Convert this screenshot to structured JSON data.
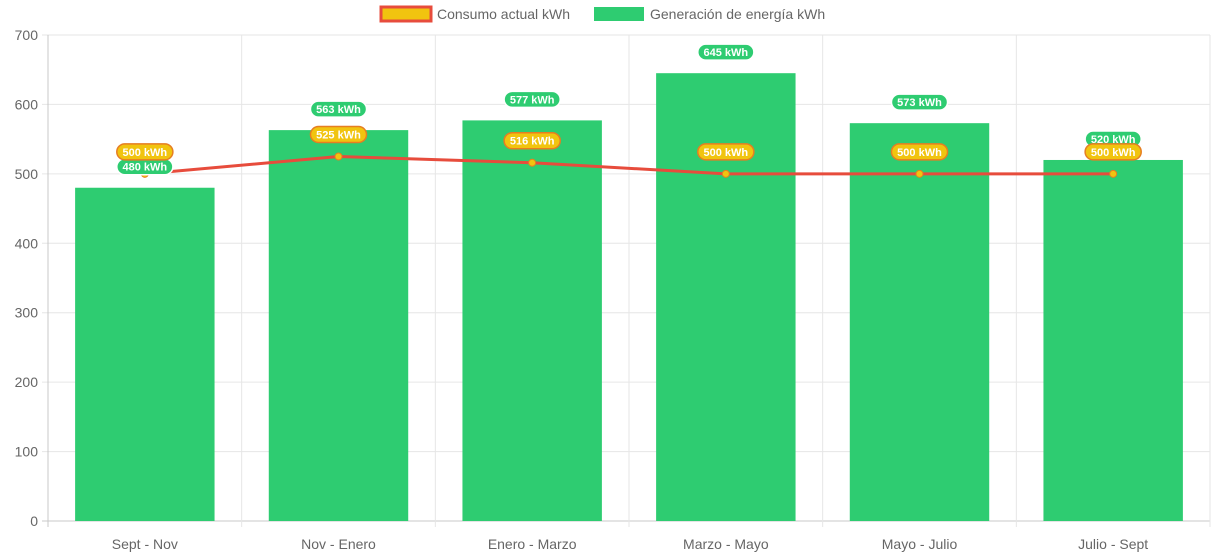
{
  "chart_data": {
    "type": "bar",
    "title": "",
    "xlabel": "",
    "ylabel": "",
    "categories": [
      "Sept - Nov",
      "Nov - Enero",
      "Enero - Marzo",
      "Marzo - Mayo",
      "Mayo - Julio",
      "Julio - Sept"
    ],
    "ylim": [
      0,
      700
    ],
    "yticks": [
      "0",
      "100",
      "200",
      "300",
      "400",
      "500",
      "600",
      "700"
    ],
    "grid": true,
    "legend_position": "top-center",
    "series": [
      {
        "name": "Consumo actual kWh",
        "type": "line",
        "values": [
          500,
          525,
          516,
          500,
          500,
          500
        ],
        "labels": [
          "500 kWh",
          "525 kWh",
          "516 kWh",
          "500 kWh",
          "500 kWh",
          "500 kWh"
        ],
        "color": "#e74c3c",
        "fill_color": "#f1c40f"
      },
      {
        "name": "Generación de energía kWh",
        "type": "bar",
        "values": [
          480,
          563,
          577,
          645,
          573,
          520
        ],
        "labels": [
          "480 kWh",
          "563 kWh",
          "577 kWh",
          "645 kWh",
          "573 kWh",
          "520 kWh"
        ],
        "color": "#2ecc71"
      }
    ]
  }
}
